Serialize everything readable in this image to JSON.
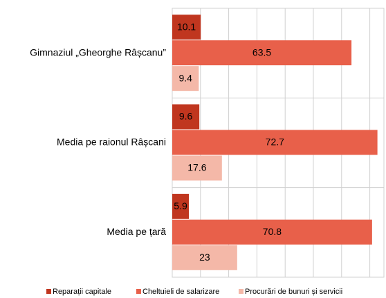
{
  "chart_data": {
    "type": "barh",
    "categories": [
      "Gimnaziul „Gheorghe Râșcanu”",
      "Media pe raionul Râșcani",
      "Media pe țară"
    ],
    "series": [
      {
        "name": "Reparații capitale",
        "color": "#c0361f",
        "values": [
          10.1,
          9.6,
          5.9
        ]
      },
      {
        "name": "Cheltuieli de salarizare",
        "color": "#e8604a",
        "values": [
          63.5,
          72.7,
          70.8
        ]
      },
      {
        "name": "Procurări de bunuri și servicii",
        "color": "#f4b8a8",
        "values": [
          9.4,
          17.6,
          23
        ]
      }
    ],
    "xlim": [
      0,
      75
    ],
    "xticks": [
      0,
      10,
      20,
      30,
      40,
      50,
      60,
      70
    ],
    "grid": true,
    "legend": "bottom"
  }
}
